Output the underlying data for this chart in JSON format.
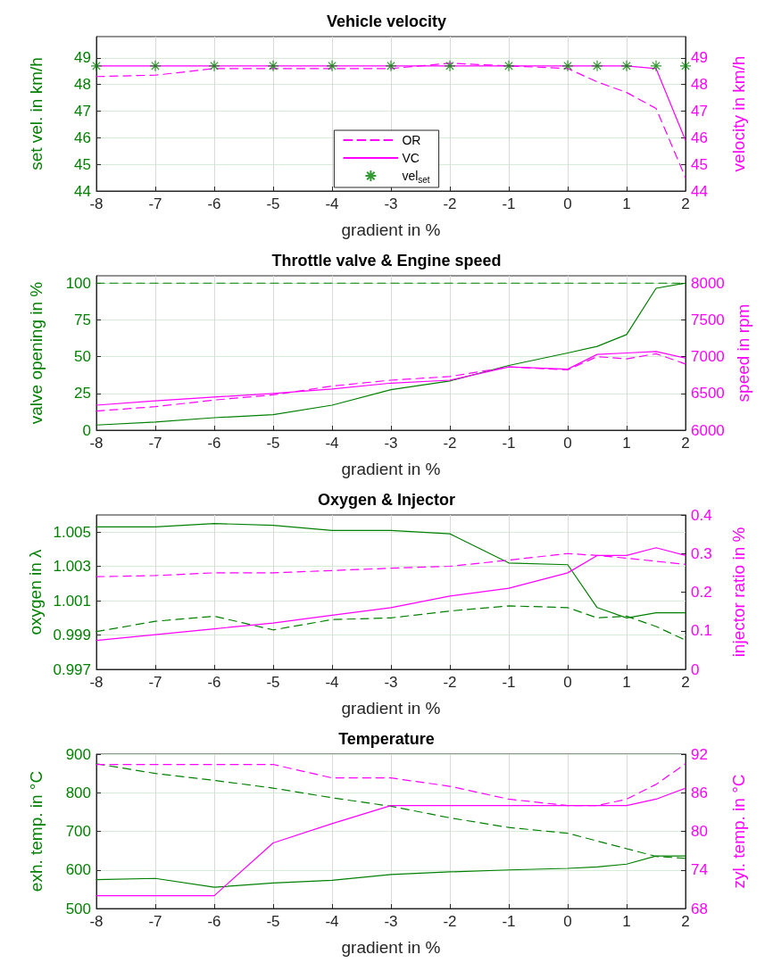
{
  "chart_data": [
    {
      "type": "line",
      "title": "Vehicle velocity",
      "xlabel": "gradient in %",
      "ylabel": "set vel. in km/h",
      "y2label": "velocity in km/h",
      "x": [
        -8,
        -7,
        -6,
        -5,
        -4,
        -3,
        -2,
        -1,
        0,
        0.5,
        1,
        1.5,
        2
      ],
      "xlim": [
        -8,
        2
      ],
      "xticks": [
        -8,
        -7,
        -6,
        -5,
        -4,
        -3,
        -2,
        -1,
        0,
        1,
        2
      ],
      "ylim": [
        44,
        49.8
      ],
      "yticks": [
        44,
        45,
        46,
        47,
        48,
        49
      ],
      "y2lim": [
        44,
        49.8
      ],
      "y2ticks": [
        44,
        45,
        46,
        47,
        48,
        49
      ],
      "grid": true,
      "legend": "bottom",
      "marker": "none",
      "series": [
        {
          "name": "OR",
          "color": "#ff00ff",
          "axis": "y2",
          "line_style": "dashed",
          "values": [
            48.3,
            48.35,
            48.6,
            48.6,
            48.6,
            48.6,
            48.8,
            48.7,
            48.6,
            48.1,
            47.7,
            47.1,
            44.5
          ]
        },
        {
          "name": "VC",
          "color": "#ff00ff",
          "axis": "y2",
          "line_style": "solid",
          "values": [
            48.7,
            48.7,
            48.7,
            48.7,
            48.7,
            48.7,
            48.7,
            48.7,
            48.7,
            48.7,
            48.7,
            48.6,
            45.9
          ]
        },
        {
          "name": "vel$_{set}$",
          "type": "scatter",
          "marker": "cross",
          "color": "#008000",
          "values": [
            48.7,
            48.7,
            48.7,
            48.7,
            48.7,
            48.7,
            48.7,
            48.7,
            48.7,
            48.7,
            48.7,
            48.7,
            48.7
          ]
        }
      ]
    },
    {
      "type": "line",
      "title": "Throttle valve & Engine speed",
      "xlabel": "gradient in %",
      "ylabel": "valve opening in %",
      "y2label": "speed in rpm",
      "x": [
        -8,
        -7,
        -6,
        -5,
        -4,
        -3,
        -2,
        -1,
        0,
        0.5,
        1,
        1.5,
        2
      ],
      "xlim": [
        -8,
        2
      ],
      "xticks": [
        -8,
        -7,
        -6,
        -5,
        -4,
        -3,
        -2,
        -1,
        0,
        1,
        2
      ],
      "ylim": [
        0,
        105
      ],
      "yticks": [
        0,
        25,
        50,
        75,
        100
      ],
      "y2lim": [
        6000,
        8100
      ],
      "y2ticks": [
        6000,
        6500,
        7000,
        7500,
        8000
      ],
      "grid": true,
      "marker": "none",
      "series": [
        {
          "color": "#008000",
          "line_style": "dashed",
          "values": [
            100,
            100,
            100,
            100,
            100,
            100,
            100,
            100,
            100,
            100,
            100,
            100,
            100
          ]
        },
        {
          "color": "#008000",
          "line_style": "solid",
          "values": [
            3.5,
            5.5,
            8.5,
            10.5,
            17,
            27.5,
            33.5,
            44,
            52.5,
            57,
            65,
            96.5,
            100
          ]
        },
        {
          "color": "#ff00ff",
          "axis": "y2",
          "line_style": "dashed",
          "values": [
            6260,
            6320,
            6410,
            6480,
            6600,
            6680,
            6730,
            6860,
            6820,
            7000,
            6970,
            7040,
            6900
          ]
        },
        {
          "color": "#ff00ff",
          "axis": "y2",
          "line_style": "solid",
          "values": [
            6340,
            6400,
            6450,
            6500,
            6560,
            6640,
            6680,
            6860,
            6830,
            7030,
            7050,
            7070,
            6980
          ]
        }
      ]
    },
    {
      "type": "line",
      "title": "Oxygen & Injector",
      "xlabel": "gradient in %",
      "ylabel": "oxygen in λ",
      "y2label": "injector ratio in %",
      "x": [
        -8,
        -7,
        -6,
        -5,
        -4,
        -3,
        -2,
        -1,
        0,
        0.5,
        1,
        1.5,
        2
      ],
      "xlim": [
        -8,
        2
      ],
      "xticks": [
        -8,
        -7,
        -6,
        -5,
        -4,
        -3,
        -2,
        -1,
        0,
        1,
        2
      ],
      "ylim": [
        0.997,
        1.006
      ],
      "yticks": [
        0.997,
        0.999,
        1.001,
        1.003,
        1.005
      ],
      "y2lim": [
        0,
        0.4
      ],
      "y2ticks": [
        0,
        0.1,
        0.2,
        0.3,
        0.4
      ],
      "grid": true,
      "marker": "none",
      "series": [
        {
          "color": "#008000",
          "line_style": "dashed",
          "values": [
            0.9992,
            0.9998,
            1.0001,
            0.9993,
            0.9999,
            1.0,
            1.0004,
            1.0007,
            1.0006,
            1.0,
            1.0001,
            0.9995,
            0.9987
          ]
        },
        {
          "color": "#008000",
          "line_style": "solid",
          "values": [
            1.0053,
            1.0053,
            1.0055,
            1.0054,
            1.0051,
            1.0051,
            1.0049,
            1.0032,
            1.0031,
            1.0006,
            1.0,
            1.0003,
            1.0003
          ]
        },
        {
          "color": "#ff00ff",
          "axis": "y2",
          "line_style": "dashed",
          "values": [
            0.24,
            0.243,
            0.25,
            0.25,
            0.256,
            0.262,
            0.267,
            0.283,
            0.3,
            0.295,
            0.288,
            0.28,
            0.272
          ]
        },
        {
          "color": "#ff00ff",
          "axis": "y2",
          "line_style": "solid",
          "values": [
            0.075,
            0.09,
            0.105,
            0.12,
            0.14,
            0.16,
            0.19,
            0.21,
            0.25,
            0.295,
            0.295,
            0.315,
            0.295
          ]
        }
      ]
    },
    {
      "type": "line",
      "title": "Temperature",
      "xlabel": "gradient in %",
      "ylabel": "exh. temp. in °C",
      "y2label": "zyl. temp. in °C",
      "x": [
        -8,
        -7,
        -6,
        -5,
        -4,
        -3,
        -2,
        -1,
        0,
        0.5,
        1,
        1.5,
        2
      ],
      "xlim": [
        -8,
        2
      ],
      "xticks": [
        -8,
        -7,
        -6,
        -5,
        -4,
        -3,
        -2,
        -1,
        0,
        1,
        2
      ],
      "ylim": [
        500,
        900
      ],
      "yticks": [
        500,
        600,
        700,
        800,
        900
      ],
      "y2lim": [
        68,
        92
      ],
      "y2ticks": [
        68,
        74,
        80,
        86,
        92
      ],
      "grid": true,
      "marker": "none",
      "series": [
        {
          "color": "#008000",
          "line_style": "dashed",
          "values": [
            875,
            850,
            832,
            812,
            787,
            765,
            735,
            710,
            695,
            675,
            655,
            635,
            630
          ]
        },
        {
          "color": "#008000",
          "line_style": "solid",
          "values": [
            575,
            578,
            555,
            566,
            573,
            588,
            595,
            600,
            604,
            608,
            615,
            636,
            636
          ]
        },
        {
          "color": "#ff00ff",
          "axis": "y2",
          "line_style": "dashed",
          "values": [
            90.4,
            90.4,
            90.4,
            90.4,
            88.3,
            88.3,
            87,
            85,
            84,
            84,
            85,
            87.3,
            90.5
          ]
        },
        {
          "color": "#ff00ff",
          "axis": "y2",
          "line_style": "solid",
          "values": [
            70,
            70,
            70,
            78.2,
            81.2,
            84,
            84,
            84,
            84,
            84,
            84,
            85,
            86.7
          ]
        }
      ]
    }
  ]
}
